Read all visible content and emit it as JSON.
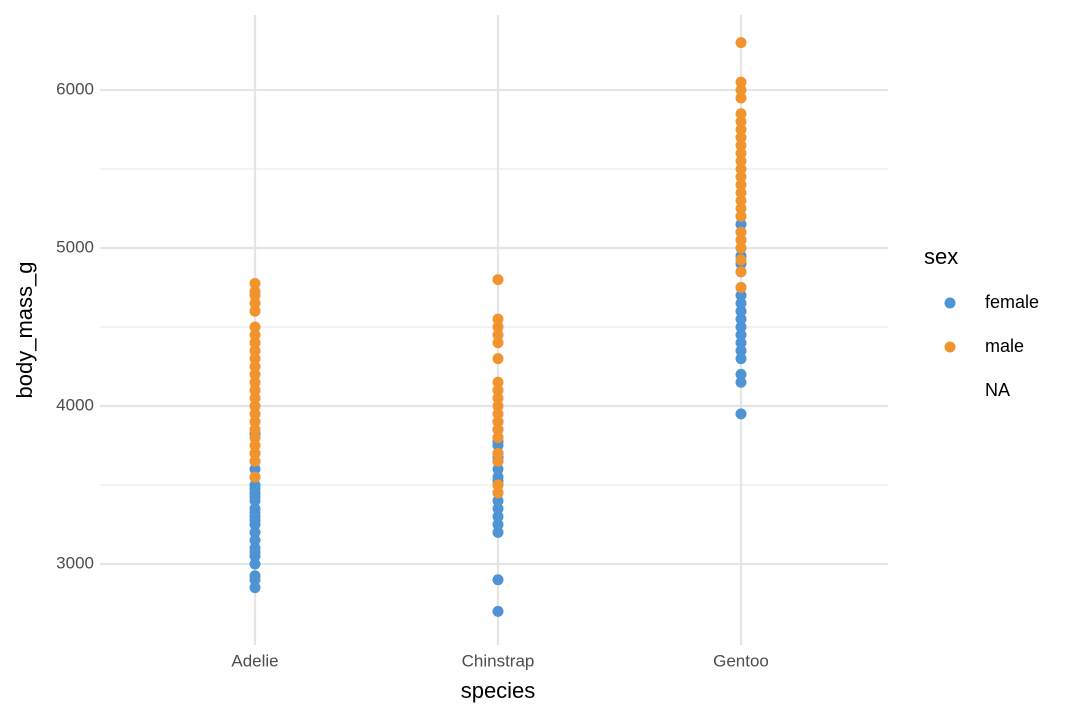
{
  "chart_data": {
    "type": "strip",
    "x_label": "species",
    "y_label": "body_mass_g",
    "legend_title": "sex",
    "categories": [
      "Adelie",
      "Chinstrap",
      "Gentoo"
    ],
    "ylim": [
      2487,
      6475
    ],
    "yticks": [
      3000,
      4000,
      5000,
      6000
    ],
    "minor_yticks": [
      3500,
      4500,
      5500
    ],
    "grid": true,
    "legend_position": "right",
    "series": [
      {
        "name": "female",
        "color": "#4e93d4",
        "x": [
          "Adelie",
          "Adelie",
          "Adelie",
          "Adelie",
          "Adelie",
          "Adelie",
          "Adelie",
          "Adelie",
          "Adelie",
          "Adelie",
          "Adelie",
          "Adelie",
          "Adelie",
          "Adelie",
          "Adelie",
          "Adelie",
          "Adelie",
          "Adelie",
          "Adelie",
          "Adelie",
          "Adelie",
          "Adelie",
          "Adelie",
          "Adelie",
          "Adelie",
          "Chinstrap",
          "Chinstrap",
          "Chinstrap",
          "Chinstrap",
          "Chinstrap",
          "Chinstrap",
          "Chinstrap",
          "Chinstrap",
          "Chinstrap",
          "Chinstrap",
          "Chinstrap",
          "Chinstrap",
          "Chinstrap",
          "Chinstrap",
          "Chinstrap",
          "Chinstrap",
          "Chinstrap",
          "Chinstrap",
          "Chinstrap",
          "Chinstrap",
          "Gentoo",
          "Gentoo",
          "Gentoo",
          "Gentoo",
          "Gentoo",
          "Gentoo",
          "Gentoo",
          "Gentoo",
          "Gentoo",
          "Gentoo",
          "Gentoo",
          "Gentoo",
          "Gentoo",
          "Gentoo",
          "Gentoo",
          "Gentoo",
          "Gentoo",
          "Gentoo",
          "Gentoo",
          "Gentoo",
          "Gentoo"
        ],
        "values": [
          2850,
          2900,
          2925,
          3000,
          3050,
          3075,
          3100,
          3150,
          3200,
          3250,
          3275,
          3300,
          3325,
          3350,
          3400,
          3425,
          3450,
          3475,
          3500,
          3550,
          3600,
          3650,
          3700,
          3800,
          3825,
          2700,
          2900,
          3200,
          3250,
          3300,
          3350,
          3400,
          3450,
          3500,
          3525,
          3550,
          3600,
          3650,
          3675,
          3700,
          3750,
          3775,
          3800,
          3850,
          3900,
          3950,
          4150,
          4200,
          4300,
          4350,
          4400,
          4450,
          4500,
          4550,
          4600,
          4650,
          4700,
          4750,
          4850,
          4900,
          4950,
          5000,
          5050,
          5100,
          5150,
          5200
        ]
      },
      {
        "name": "male",
        "color": "#f2942e",
        "x": [
          "Adelie",
          "Adelie",
          "Adelie",
          "Adelie",
          "Adelie",
          "Adelie",
          "Adelie",
          "Adelie",
          "Adelie",
          "Adelie",
          "Adelie",
          "Adelie",
          "Adelie",
          "Adelie",
          "Adelie",
          "Adelie",
          "Adelie",
          "Adelie",
          "Adelie",
          "Adelie",
          "Adelie",
          "Adelie",
          "Adelie",
          "Adelie",
          "Chinstrap",
          "Chinstrap",
          "Chinstrap",
          "Chinstrap",
          "Chinstrap",
          "Chinstrap",
          "Chinstrap",
          "Chinstrap",
          "Chinstrap",
          "Chinstrap",
          "Chinstrap",
          "Chinstrap",
          "Chinstrap",
          "Chinstrap",
          "Chinstrap",
          "Chinstrap",
          "Chinstrap",
          "Chinstrap",
          "Gentoo",
          "Gentoo",
          "Gentoo",
          "Gentoo",
          "Gentoo",
          "Gentoo",
          "Gentoo",
          "Gentoo",
          "Gentoo",
          "Gentoo",
          "Gentoo",
          "Gentoo",
          "Gentoo",
          "Gentoo",
          "Gentoo",
          "Gentoo",
          "Gentoo",
          "Gentoo",
          "Gentoo",
          "Gentoo",
          "Gentoo",
          "Gentoo",
          "Gentoo",
          "Gentoo"
        ],
        "values": [
          3550,
          3650,
          3700,
          3750,
          3800,
          3850,
          3900,
          3950,
          4000,
          4050,
          4100,
          4150,
          4200,
          4250,
          4300,
          4350,
          4400,
          4450,
          4500,
          4600,
          4650,
          4700,
          4725,
          4775,
          3450,
          3500,
          3650,
          3700,
          3800,
          3850,
          3900,
          3950,
          4000,
          4050,
          4100,
          4150,
          4300,
          4400,
          4450,
          4500,
          4550,
          4800,
          4750,
          4850,
          4925,
          5000,
          5050,
          5100,
          5200,
          5250,
          5300,
          5350,
          5400,
          5450,
          5500,
          5550,
          5600,
          5650,
          5700,
          5750,
          5800,
          5850,
          5950,
          6000,
          6050,
          6300
        ]
      },
      {
        "name": "NA",
        "color": null,
        "x": [],
        "values": []
      }
    ]
  }
}
